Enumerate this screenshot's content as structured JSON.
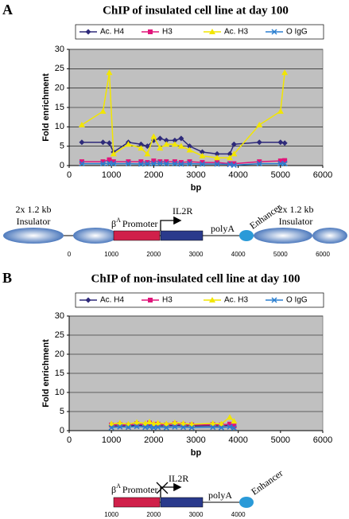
{
  "chart_data": [
    {
      "type": "line",
      "panel": "A",
      "title": "ChIP of insulated cell line at day 100",
      "x_label": "bp",
      "y_label": "Fold enrichment",
      "plot_color": "#c0c0c0",
      "grid": true,
      "legend": "top",
      "x": [
        300,
        800,
        950,
        1050,
        1400,
        1700,
        1850,
        2000,
        2150,
        2300,
        2500,
        2650,
        2850,
        3150,
        3500,
        3800,
        3900,
        4500,
        5000,
        5100
      ],
      "series": [
        {
          "name": "Ac. H4",
          "color": "#2e2a7a",
          "marker": "diamond",
          "values": [
            6,
            6,
            5.8,
            3.5,
            6,
            5.5,
            5,
            6.5,
            7,
            6.5,
            6.5,
            7,
            5,
            3.5,
            3,
            3,
            5.5,
            6,
            6,
            5.8
          ]
        },
        {
          "name": "H3",
          "color": "#e0157a",
          "marker": "square",
          "values": [
            1,
            1,
            1.5,
            1,
            1,
            1,
            0.8,
            1.2,
            1,
            1,
            1,
            0.8,
            1,
            0.8,
            0.8,
            0.5,
            0.5,
            1,
            1.2,
            1.3
          ]
        },
        {
          "name": "Ac. H3",
          "color": "#f2e600",
          "marker": "triangle",
          "values": [
            10.5,
            14,
            24,
            3,
            5.5,
            4.5,
            3,
            7.5,
            4.5,
            5.5,
            5.5,
            5,
            4,
            2.5,
            2,
            2,
            3,
            10.5,
            14,
            24
          ]
        },
        {
          "name": "O IgG",
          "color": "#2a7fd0",
          "marker": "x",
          "values": [
            0.5,
            0.5,
            0.6,
            0.5,
            0.5,
            0.4,
            0.5,
            0.5,
            0.6,
            0.5,
            0.5,
            0.4,
            0.5,
            0.4,
            0.4,
            0.3,
            0.1,
            0.5,
            0.5,
            0.5
          ]
        }
      ],
      "xlim": [
        0,
        6000
      ],
      "xticks": [
        0,
        1000,
        2000,
        3000,
        4000,
        5000,
        6000
      ],
      "ylim": [
        0,
        30
      ],
      "yticks": [
        0,
        5,
        10,
        15,
        20,
        25,
        30
      ]
    },
    {
      "type": "line",
      "panel": "B",
      "title": "ChIP of non-insulated cell line at day 100",
      "x_label": "bp",
      "y_label": "Fold enrichment",
      "plot_color": "#c0c0c0",
      "grid": true,
      "legend": "top",
      "x": [
        1000,
        1200,
        1400,
        1600,
        1800,
        1900,
        2000,
        2100,
        2300,
        2500,
        2700,
        2900,
        3400,
        3600,
        3800,
        3900
      ],
      "series": [
        {
          "name": "Ac. H4",
          "color": "#2e2a7a",
          "marker": "diamond",
          "values": [
            1.2,
            1.3,
            1.2,
            1.4,
            1.3,
            1.5,
            1.2,
            1.3,
            1.2,
            1.4,
            1.3,
            1.2,
            1.3,
            1.2,
            1.4,
            1
          ]
        },
        {
          "name": "H3",
          "color": "#e0157a",
          "marker": "square",
          "values": [
            1.5,
            1.6,
            1.4,
            1.8,
            1.5,
            2,
            1.6,
            1.7,
            1.5,
            1.8,
            1.6,
            1.5,
            1.6,
            1.5,
            1.7,
            1.2
          ]
        },
        {
          "name": "Ac. H3",
          "color": "#f2e600",
          "marker": "triangle",
          "values": [
            1.8,
            2,
            1.7,
            2.2,
            1.9,
            2.3,
            1.8,
            2,
            1.8,
            2.1,
            1.9,
            1.7,
            1.9,
            1.8,
            3.5,
            2.5
          ]
        },
        {
          "name": "O IgG",
          "color": "#2a7fd0",
          "marker": "x",
          "values": [
            0.8,
            1,
            0.9,
            1.1,
            0.9,
            1,
            0.8,
            0.9,
            0.8,
            1,
            0.9,
            0.8,
            0.9,
            0.8,
            1,
            0.7
          ]
        }
      ],
      "xlim": [
        0,
        6000
      ],
      "xticks": [
        0,
        1000,
        2000,
        3000,
        4000,
        5000,
        6000
      ],
      "ylim": [
        0,
        30
      ],
      "yticks": [
        0,
        5,
        10,
        15,
        20,
        25,
        30
      ]
    }
  ],
  "diagrams": [
    {
      "insulator_size": "2x 1.2 kb",
      "insulator": "Insulator",
      "promoter_symbol": "β",
      "promoter_sup": "A",
      "promoter": "Promoter",
      "gene": "IL2R",
      "polya": "polyA",
      "enhancer": "Enhancer",
      "scale": [
        0,
        1000,
        2000,
        3000,
        4000,
        5000,
        6000
      ]
    },
    {
      "promoter_symbol": "β",
      "promoter_sup": "A",
      "promoter": "Promoter",
      "gene": "IL2R",
      "polya": "polyA",
      "enhancer": "Enhancer",
      "scale": [
        1000,
        2000,
        3000,
        4000
      ]
    }
  ]
}
